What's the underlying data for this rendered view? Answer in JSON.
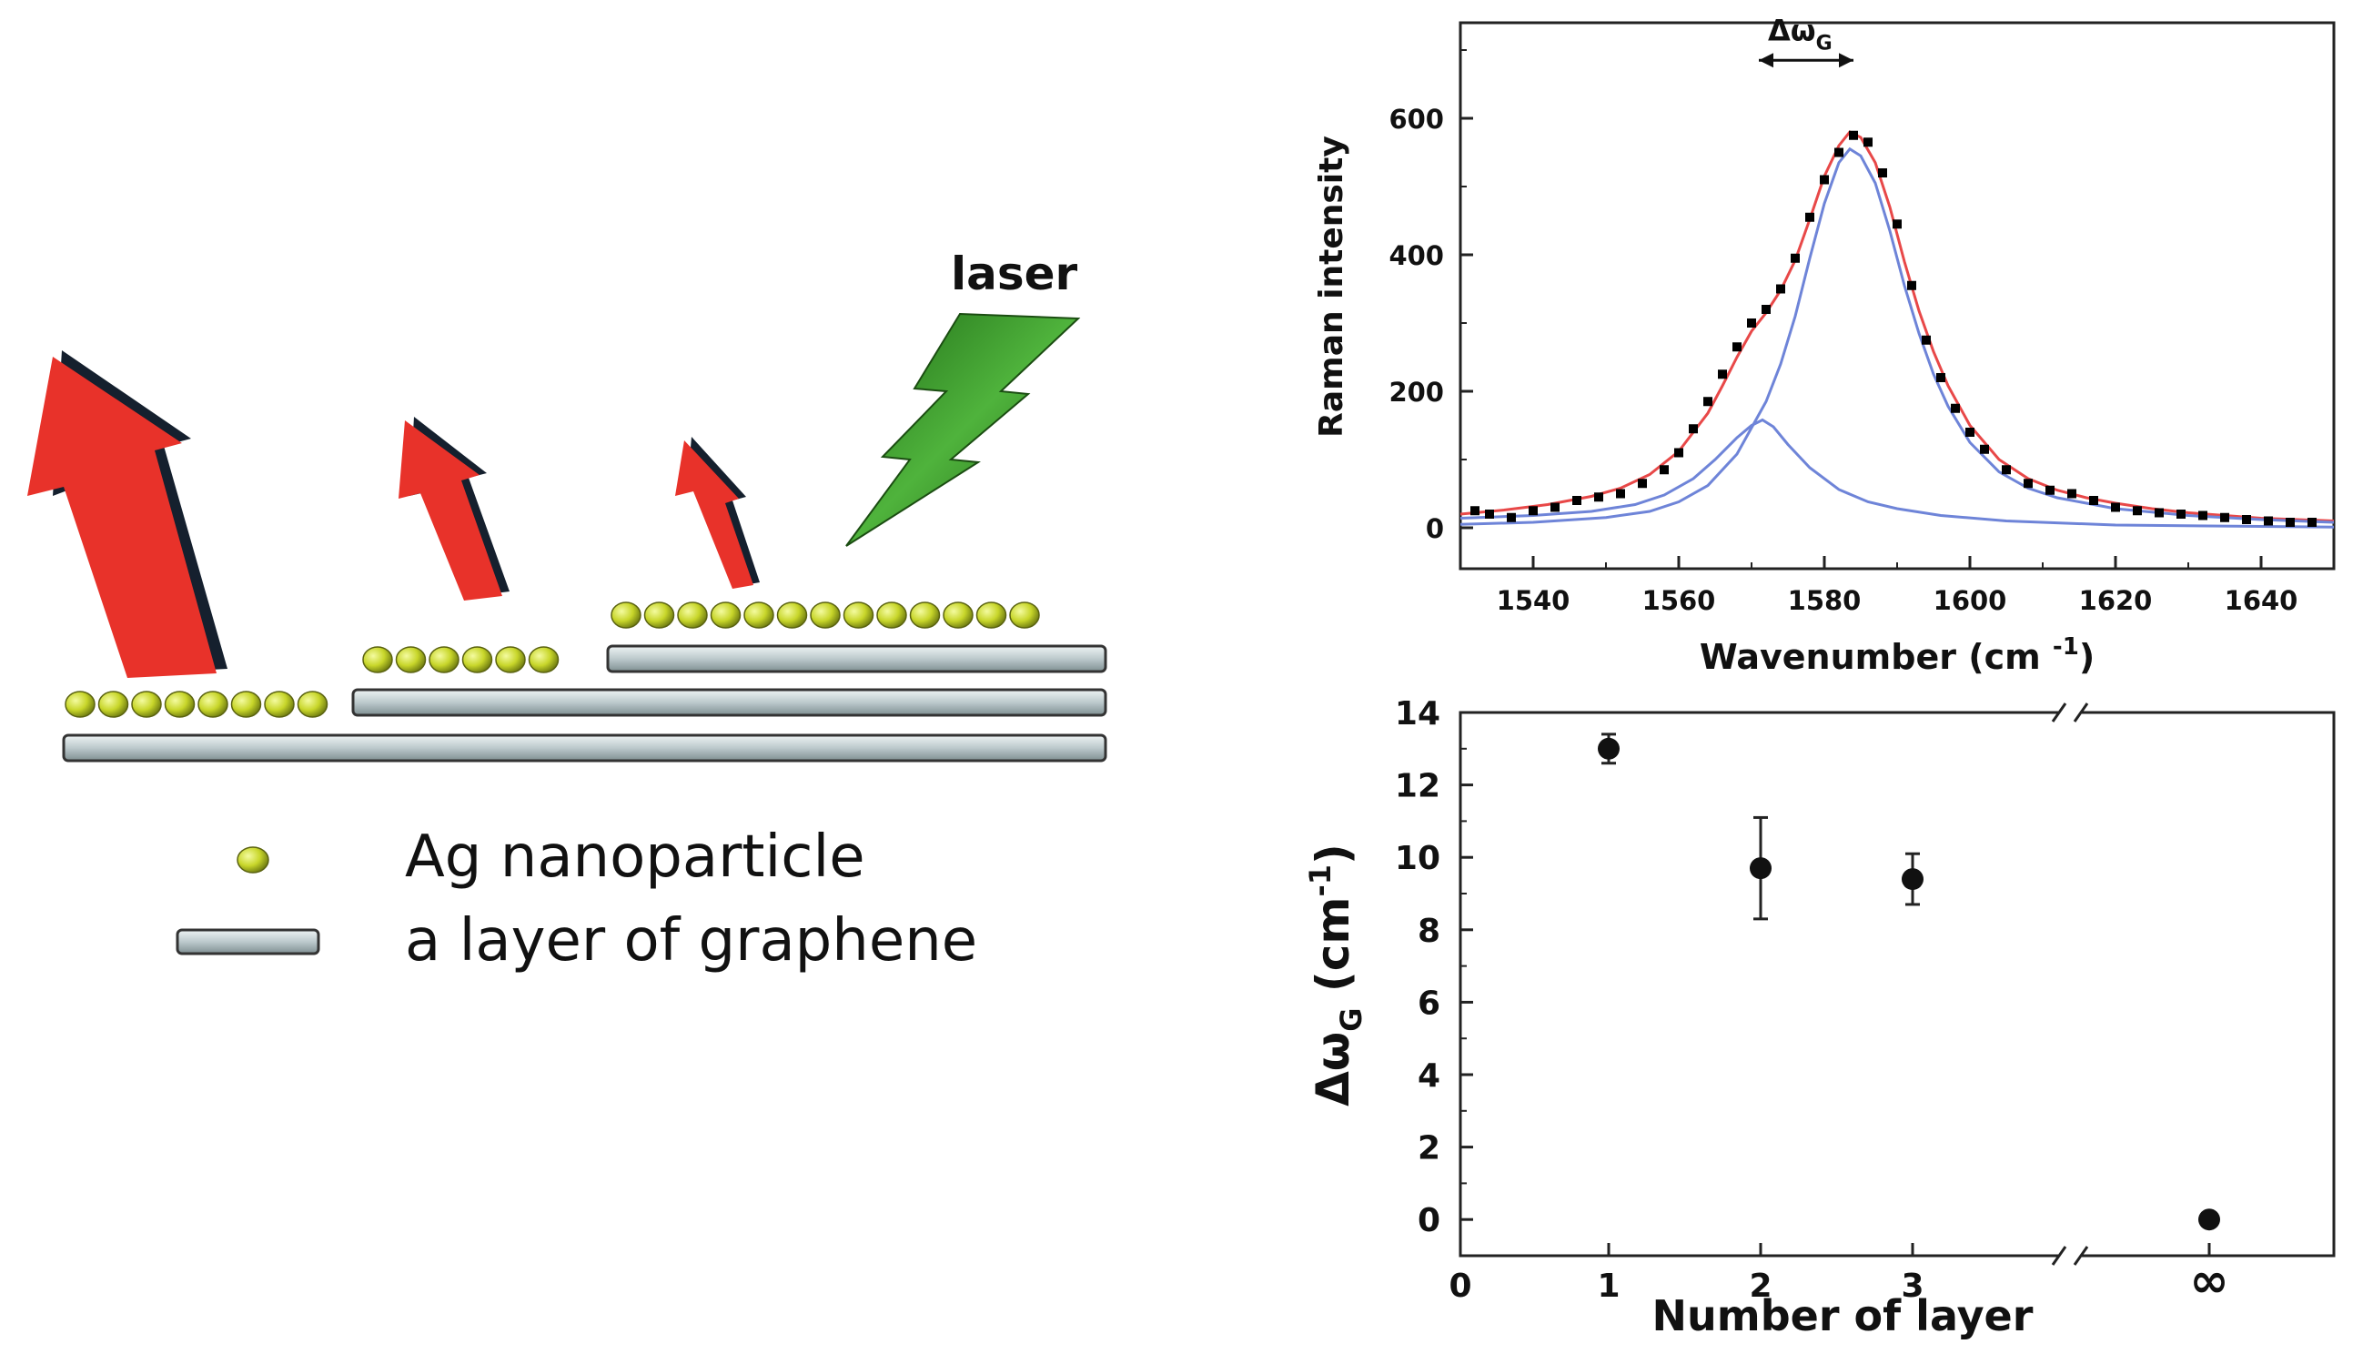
{
  "scheme": {
    "laser_label": "laser",
    "legend": {
      "particle_label": "Ag nanoparticle",
      "layer_label": "a layer of graphene"
    },
    "particle_counts_per_step": [
      8,
      6,
      13
    ],
    "colors": {
      "emission_arrow": "#e8322a",
      "laser_bolt": "#2e8b22",
      "particle": "#c8d62a",
      "graphene_layer": "#bcc9cc"
    }
  },
  "chart_data": [
    {
      "type": "scatter",
      "xlabel": "Wavenumber (cm",
      "xlabel_sup": "-1",
      "xlabel_end": ")",
      "ylabel": "Raman intensity",
      "xlim": [
        1530,
        1650
      ],
      "ylim": [
        -60,
        740
      ],
      "xticks": [
        1540,
        1560,
        1580,
        1600,
        1620,
        1640
      ],
      "yticks": [
        0,
        200,
        400,
        600
      ],
      "annotation": {
        "text": "Δω",
        "sub": "G",
        "x_from": 1571,
        "x_to": 1584
      },
      "series": [
        {
          "kind": "points",
          "color": "#000000",
          "x": [
            1532,
            1534,
            1537,
            1540,
            1543,
            1546,
            1549,
            1552,
            1555,
            1558,
            1560,
            1562,
            1564,
            1566,
            1568,
            1570,
            1572,
            1574,
            1576,
            1578,
            1580,
            1582,
            1584,
            1586,
            1588,
            1590,
            1592,
            1594,
            1596,
            1598,
            1600,
            1602,
            1605,
            1608,
            1611,
            1614,
            1617,
            1620,
            1623,
            1626,
            1629,
            1632,
            1635,
            1638,
            1641,
            1644,
            1647
          ],
          "y": [
            25,
            20,
            15,
            25,
            30,
            40,
            45,
            50,
            65,
            85,
            110,
            145,
            185,
            225,
            265,
            300,
            320,
            350,
            395,
            455,
            510,
            550,
            575,
            565,
            520,
            445,
            355,
            275,
            220,
            175,
            140,
            115,
            85,
            65,
            55,
            50,
            40,
            30,
            25,
            22,
            20,
            18,
            15,
            12,
            10,
            8,
            8
          ]
        },
        {
          "kind": "line",
          "name": "",
          "color": "#e84848",
          "x": [
            1530,
            1536,
            1542,
            1548,
            1552,
            1556,
            1560,
            1564,
            1566,
            1568,
            1570,
            1572,
            1574,
            1576,
            1578,
            1580,
            1582,
            1583.5,
            1585,
            1587,
            1589,
            1591,
            1593,
            1595,
            1597,
            1600,
            1604,
            1608,
            1612,
            1616,
            1620,
            1625,
            1630,
            1635,
            1640,
            1645,
            1650
          ],
          "y": [
            20,
            26,
            34,
            46,
            58,
            78,
            112,
            168,
            208,
            250,
            288,
            315,
            348,
            392,
            452,
            515,
            560,
            580,
            572,
            535,
            470,
            390,
            318,
            258,
            208,
            150,
            100,
            72,
            55,
            44,
            36,
            28,
            22,
            18,
            14,
            12,
            10
          ]
        },
        {
          "kind": "line",
          "name": "",
          "color": "#6e84d8",
          "x": [
            1530,
            1540,
            1550,
            1556,
            1560,
            1564,
            1568,
            1572,
            1574,
            1576,
            1578,
            1580,
            1582,
            1583.5,
            1585,
            1587,
            1589,
            1591,
            1593,
            1595,
            1597,
            1600,
            1604,
            1608,
            1612,
            1620,
            1630,
            1640,
            1650
          ],
          "y": [
            5,
            8,
            15,
            24,
            38,
            62,
            108,
            185,
            240,
            310,
            395,
            475,
            535,
            555,
            545,
            505,
            435,
            355,
            285,
            225,
            178,
            125,
            82,
            58,
            44,
            28,
            18,
            12,
            8
          ]
        },
        {
          "kind": "line",
          "name": "",
          "color": "#6e84d8",
          "x": [
            1530,
            1540,
            1548,
            1554,
            1558,
            1562,
            1565,
            1568,
            1570,
            1571.5,
            1573,
            1575,
            1578,
            1582,
            1586,
            1590,
            1596,
            1605,
            1620,
            1650
          ],
          "y": [
            14,
            18,
            24,
            34,
            48,
            72,
            100,
            132,
            150,
            158,
            148,
            122,
            88,
            56,
            38,
            28,
            18,
            10,
            4,
            1
          ]
        }
      ]
    },
    {
      "type": "scatter",
      "xlabel": "Number of layer",
      "ylabel": "Δω",
      "ylabel_sub": "G",
      "ylabel_unit": "(cm",
      "ylabel_unit_sup": "-1",
      "ylabel_unit_end": ")",
      "ylim": [
        -1,
        14
      ],
      "yticks": [
        0,
        2,
        4,
        6,
        8,
        10,
        12,
        14
      ],
      "xticks": [
        "0",
        "1",
        "2",
        "3",
        "∞"
      ],
      "axis_break": true,
      "points": [
        {
          "x": "1",
          "y": 13.0,
          "err": 0.4
        },
        {
          "x": "2",
          "y": 9.7,
          "err": 1.4
        },
        {
          "x": "3",
          "y": 9.4,
          "err": 0.7
        },
        {
          "x": "∞",
          "y": 0.0,
          "err": 0.0
        }
      ]
    }
  ]
}
